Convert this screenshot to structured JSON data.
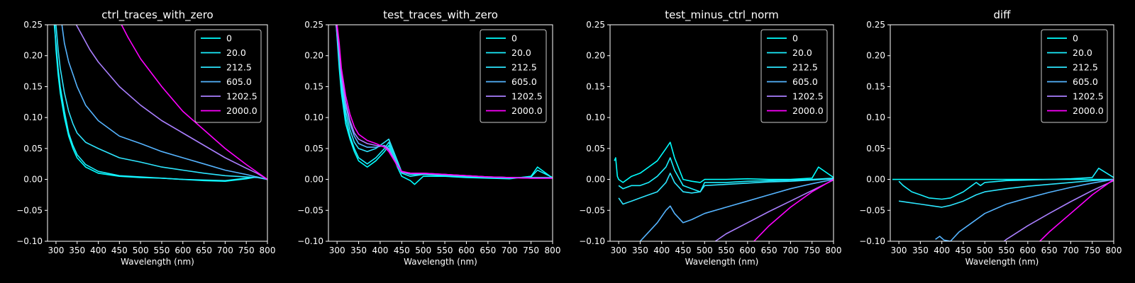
{
  "chart_data": [
    {
      "type": "line",
      "title": "ctrl_traces_with_zero",
      "xlabel": "Wavelength (nm)",
      "ylabel": "",
      "xlim": [
        280,
        800
      ],
      "ylim": [
        -0.1,
        0.25
      ],
      "xticks": [
        "300",
        "350",
        "400",
        "450",
        "500",
        "550",
        "600",
        "650",
        "700",
        "750",
        "800"
      ],
      "yticks": [
        "−0.10",
        "−0.05",
        "0.00",
        "0.05",
        "0.10",
        "0.15",
        "0.20",
        "0.25"
      ],
      "legend": "top-right",
      "series": [
        {
          "name": "0",
          "color": "#00ffff",
          "x": [
            297,
            300,
            305,
            310,
            320,
            330,
            340,
            350,
            370,
            400,
            450,
            500,
            550,
            600,
            650,
            700,
            750,
            775,
            800
          ],
          "y": [
            0.25,
            0.21,
            0.17,
            0.14,
            0.1,
            0.07,
            0.05,
            0.035,
            0.02,
            0.01,
            0.005,
            0.003,
            0.002,
            0.0,
            -0.002,
            -0.003,
            0.001,
            0.004,
            0.0
          ]
        },
        {
          "name": "20.0",
          "color": "#1af0ff",
          "x": [
            296,
            300,
            305,
            310,
            320,
            330,
            340,
            350,
            370,
            400,
            450,
            500,
            550,
            600,
            650,
            700,
            750,
            775,
            800
          ],
          "y": [
            0.25,
            0.22,
            0.18,
            0.15,
            0.11,
            0.075,
            0.055,
            0.04,
            0.024,
            0.013,
            0.006,
            0.004,
            0.002,
            0.0,
            -0.001,
            -0.002,
            0.002,
            0.004,
            0.0
          ]
        },
        {
          "name": "212.5",
          "color": "#2de6ff",
          "x": [
            300,
            305,
            310,
            320,
            330,
            340,
            350,
            370,
            400,
            450,
            500,
            550,
            600,
            650,
            700,
            750,
            775,
            800
          ],
          "y": [
            0.25,
            0.21,
            0.18,
            0.14,
            0.11,
            0.09,
            0.075,
            0.06,
            0.05,
            0.035,
            0.028,
            0.02,
            0.015,
            0.01,
            0.006,
            0.004,
            0.003,
            0.0
          ]
        },
        {
          "name": "605.0",
          "color": "#55b4ff",
          "x": [
            314,
            320,
            330,
            340,
            350,
            370,
            400,
            450,
            500,
            550,
            600,
            650,
            700,
            750,
            775,
            800
          ],
          "y": [
            0.25,
            0.22,
            0.19,
            0.17,
            0.15,
            0.12,
            0.095,
            0.07,
            0.058,
            0.045,
            0.035,
            0.025,
            0.015,
            0.008,
            0.004,
            0.0
          ]
        },
        {
          "name": "1202.5",
          "color": "#aa7fff",
          "x": [
            348,
            360,
            380,
            400,
            450,
            500,
            550,
            600,
            650,
            700,
            750,
            775,
            800
          ],
          "y": [
            0.25,
            0.235,
            0.21,
            0.19,
            0.15,
            0.12,
            0.095,
            0.075,
            0.055,
            0.035,
            0.018,
            0.01,
            0.0
          ]
        },
        {
          "name": "2000.0",
          "color": "#ff00ff",
          "x": [
            455,
            470,
            500,
            550,
            600,
            650,
            700,
            750,
            775,
            800
          ],
          "y": [
            0.25,
            0.23,
            0.195,
            0.15,
            0.11,
            0.08,
            0.05,
            0.024,
            0.012,
            0.0
          ]
        }
      ]
    },
    {
      "type": "line",
      "title": "test_traces_with_zero",
      "xlabel": "Wavelength (nm)",
      "ylabel": "",
      "xlim": [
        280,
        800
      ],
      "ylim": [
        -0.1,
        0.25
      ],
      "xticks": [
        "300",
        "350",
        "400",
        "450",
        "500",
        "550",
        "600",
        "650",
        "700",
        "750",
        "800"
      ],
      "yticks": [
        "−0.10",
        "−0.05",
        "0.00",
        "0.05",
        "0.10",
        "0.15",
        "0.20",
        "0.25"
      ],
      "legend": "top-right",
      "series": [
        {
          "name": "0",
          "color": "#00ffff",
          "x": [
            298,
            305,
            310,
            320,
            330,
            340,
            350,
            370,
            390,
            410,
            420,
            440,
            450,
            470,
            480,
            500,
            550,
            600,
            650,
            700,
            750,
            765,
            800
          ],
          "y": [
            0.25,
            0.18,
            0.14,
            0.09,
            0.065,
            0.045,
            0.03,
            0.02,
            0.03,
            0.045,
            0.055,
            0.02,
            0.005,
            -0.002,
            -0.008,
            0.005,
            0.005,
            0.003,
            0.002,
            0.001,
            0.005,
            0.02,
            0.002
          ]
        },
        {
          "name": "20.0",
          "color": "#1af0ff",
          "x": [
            298,
            305,
            310,
            320,
            330,
            340,
            350,
            370,
            390,
            410,
            420,
            440,
            450,
            470,
            500,
            550,
            600,
            650,
            700,
            750,
            765,
            800
          ],
          "y": [
            0.25,
            0.19,
            0.15,
            0.1,
            0.07,
            0.05,
            0.035,
            0.025,
            0.035,
            0.05,
            0.06,
            0.025,
            0.01,
            0.005,
            0.008,
            0.006,
            0.004,
            0.003,
            0.002,
            0.004,
            0.015,
            0.003
          ]
        },
        {
          "name": "212.5",
          "color": "#2de6ff",
          "x": [
            298,
            305,
            310,
            320,
            330,
            340,
            350,
            370,
            390,
            410,
            420,
            440,
            450,
            470,
            500,
            550,
            600,
            650,
            700,
            750,
            800
          ],
          "y": [
            0.25,
            0.2,
            0.16,
            0.11,
            0.08,
            0.06,
            0.05,
            0.045,
            0.05,
            0.06,
            0.065,
            0.03,
            0.012,
            0.008,
            0.008,
            0.007,
            0.005,
            0.004,
            0.003,
            0.003,
            0.003
          ]
        },
        {
          "name": "605.0",
          "color": "#55b4ff",
          "x": [
            298,
            305,
            310,
            320,
            330,
            340,
            350,
            370,
            390,
            410,
            420,
            440,
            450,
            470,
            500,
            550,
            600,
            650,
            700,
            750,
            800
          ],
          "y": [
            0.25,
            0.2,
            0.165,
            0.12,
            0.09,
            0.07,
            0.058,
            0.052,
            0.052,
            0.055,
            0.05,
            0.025,
            0.012,
            0.01,
            0.009,
            0.008,
            0.006,
            0.004,
            0.003,
            0.002,
            0.002
          ]
        },
        {
          "name": "1202.5",
          "color": "#aa7fff",
          "x": [
            298,
            305,
            310,
            320,
            330,
            340,
            350,
            370,
            390,
            410,
            420,
            440,
            450,
            470,
            500,
            550,
            600,
            650,
            700,
            750,
            800
          ],
          "y": [
            0.25,
            0.21,
            0.17,
            0.125,
            0.095,
            0.075,
            0.065,
            0.058,
            0.055,
            0.053,
            0.048,
            0.022,
            0.012,
            0.01,
            0.01,
            0.008,
            0.006,
            0.004,
            0.003,
            0.002,
            0.002
          ]
        },
        {
          "name": "2000.0",
          "color": "#ff00ff",
          "x": [
            300,
            305,
            310,
            320,
            330,
            340,
            350,
            370,
            390,
            410,
            420,
            440,
            450,
            470,
            500,
            550,
            600,
            650,
            700,
            750,
            800
          ],
          "y": [
            0.25,
            0.22,
            0.18,
            0.135,
            0.105,
            0.085,
            0.073,
            0.063,
            0.058,
            0.052,
            0.045,
            0.022,
            0.013,
            0.01,
            0.01,
            0.008,
            0.006,
            0.004,
            0.003,
            0.002,
            0.002
          ]
        }
      ]
    },
    {
      "type": "line",
      "title": "test_minus_ctrl_norm",
      "xlabel": "Wavelength (nm)",
      "ylabel": "",
      "xlim": [
        280,
        800
      ],
      "ylim": [
        -0.1,
        0.25
      ],
      "xticks": [
        "300",
        "350",
        "400",
        "450",
        "500",
        "550",
        "600",
        "650",
        "700",
        "750",
        "800"
      ],
      "yticks": [
        "−0.10",
        "−0.05",
        "0.00",
        "0.05",
        "0.10",
        "0.15",
        "0.20",
        "0.25"
      ],
      "legend": "top-right",
      "series": [
        {
          "name": "0",
          "color": "#00ffff",
          "x": [
            290,
            293,
            297,
            300,
            310,
            330,
            350,
            370,
            390,
            410,
            420,
            430,
            450,
            470,
            490,
            500,
            550,
            600,
            650,
            700,
            750,
            765,
            800
          ],
          "y": [
            0.03,
            0.035,
            0.005,
            0.0,
            -0.005,
            0.005,
            0.01,
            0.02,
            0.03,
            0.05,
            0.06,
            0.035,
            0.0,
            -0.003,
            -0.005,
            0.0,
            0.0,
            0.001,
            0.0,
            0.0,
            0.002,
            0.02,
            0.003
          ]
        },
        {
          "name": "20.0",
          "color": "#1af0ff",
          "x": [
            300,
            310,
            330,
            350,
            370,
            390,
            410,
            420,
            430,
            450,
            470,
            490,
            500,
            550,
            600,
            650,
            700,
            750,
            800
          ],
          "y": [
            -0.01,
            -0.015,
            -0.01,
            -0.01,
            -0.005,
            0.005,
            0.02,
            0.035,
            0.015,
            -0.01,
            -0.015,
            -0.02,
            -0.005,
            -0.005,
            -0.003,
            -0.002,
            -0.001,
            0.0,
            0.002
          ]
        },
        {
          "name": "212.5",
          "color": "#2de6ff",
          "x": [
            300,
            310,
            330,
            350,
            370,
            390,
            410,
            420,
            430,
            450,
            470,
            490,
            500,
            550,
            600,
            650,
            700,
            750,
            800
          ],
          "y": [
            -0.03,
            -0.04,
            -0.035,
            -0.03,
            -0.025,
            -0.02,
            -0.005,
            0.01,
            -0.005,
            -0.02,
            -0.022,
            -0.02,
            -0.01,
            -0.008,
            -0.006,
            -0.004,
            -0.003,
            -0.001,
            0.001
          ]
        },
        {
          "name": "605.0",
          "color": "#55b4ff",
          "x": [
            350,
            370,
            390,
            410,
            420,
            430,
            450,
            470,
            500,
            550,
            600,
            650,
            700,
            750,
            800
          ],
          "y": [
            -0.1,
            -0.085,
            -0.07,
            -0.05,
            -0.043,
            -0.055,
            -0.07,
            -0.065,
            -0.055,
            -0.045,
            -0.035,
            -0.025,
            -0.015,
            -0.007,
            0.0
          ]
        },
        {
          "name": "1202.5",
          "color": "#aa7fff",
          "x": [
            525,
            550,
            600,
            650,
            700,
            750,
            800
          ],
          "y": [
            -0.1,
            -0.088,
            -0.07,
            -0.052,
            -0.035,
            -0.018,
            -0.001
          ]
        },
        {
          "name": "2000.0",
          "color": "#ff00ff",
          "x": [
            615,
            650,
            700,
            750,
            800
          ],
          "y": [
            -0.1,
            -0.075,
            -0.045,
            -0.02,
            0.0
          ]
        }
      ]
    },
    {
      "type": "line",
      "title": "diff",
      "xlabel": "Wavelength (nm)",
      "ylabel": "",
      "xlim": [
        280,
        800
      ],
      "ylim": [
        -0.1,
        0.25
      ],
      "xticks": [
        "300",
        "350",
        "400",
        "450",
        "500",
        "550",
        "600",
        "650",
        "700",
        "750",
        "800"
      ],
      "yticks": [
        "−0.10",
        "−0.05",
        "0.00",
        "0.05",
        "0.10",
        "0.15",
        "0.20",
        "0.25"
      ],
      "legend": "top-right",
      "series": [
        {
          "name": "0",
          "color": "#00ffff",
          "x": [
            285,
            800
          ],
          "y": [
            0.0,
            0.0
          ]
        },
        {
          "name": "20.0",
          "color": "#1af0ff",
          "x": [
            300,
            310,
            330,
            350,
            370,
            400,
            420,
            450,
            470,
            480,
            490,
            500,
            550,
            600,
            650,
            700,
            750,
            765,
            800
          ],
          "y": [
            -0.003,
            -0.01,
            -0.02,
            -0.025,
            -0.03,
            -0.032,
            -0.03,
            -0.02,
            -0.01,
            -0.005,
            -0.01,
            -0.005,
            -0.002,
            -0.001,
            0.0,
            0.001,
            0.003,
            0.018,
            0.003
          ]
        },
        {
          "name": "212.5",
          "color": "#2de6ff",
          "x": [
            300,
            320,
            350,
            380,
            400,
            420,
            450,
            480,
            500,
            550,
            600,
            650,
            700,
            750,
            800
          ],
          "y": [
            -0.035,
            -0.037,
            -0.04,
            -0.043,
            -0.045,
            -0.042,
            -0.035,
            -0.025,
            -0.02,
            -0.015,
            -0.011,
            -0.008,
            -0.005,
            -0.002,
            0.0
          ]
        },
        {
          "name": "605.0",
          "color": "#55b4ff",
          "x": [
            385,
            395,
            405,
            420,
            440,
            470,
            500,
            550,
            600,
            650,
            700,
            750,
            800
          ],
          "y": [
            -0.097,
            -0.092,
            -0.098,
            -0.1,
            -0.085,
            -0.07,
            -0.055,
            -0.04,
            -0.03,
            -0.021,
            -0.013,
            -0.006,
            0.0
          ]
        },
        {
          "name": "1202.5",
          "color": "#aa7fff",
          "x": [
            545,
            550,
            600,
            650,
            700,
            750,
            800
          ],
          "y": [
            -0.1,
            -0.097,
            -0.075,
            -0.055,
            -0.036,
            -0.018,
            -0.002
          ]
        },
        {
          "name": "2000.0",
          "color": "#ff00ff",
          "x": [
            628,
            650,
            700,
            750,
            800
          ],
          "y": [
            -0.1,
            -0.085,
            -0.055,
            -0.025,
            0.0
          ]
        }
      ]
    }
  ]
}
